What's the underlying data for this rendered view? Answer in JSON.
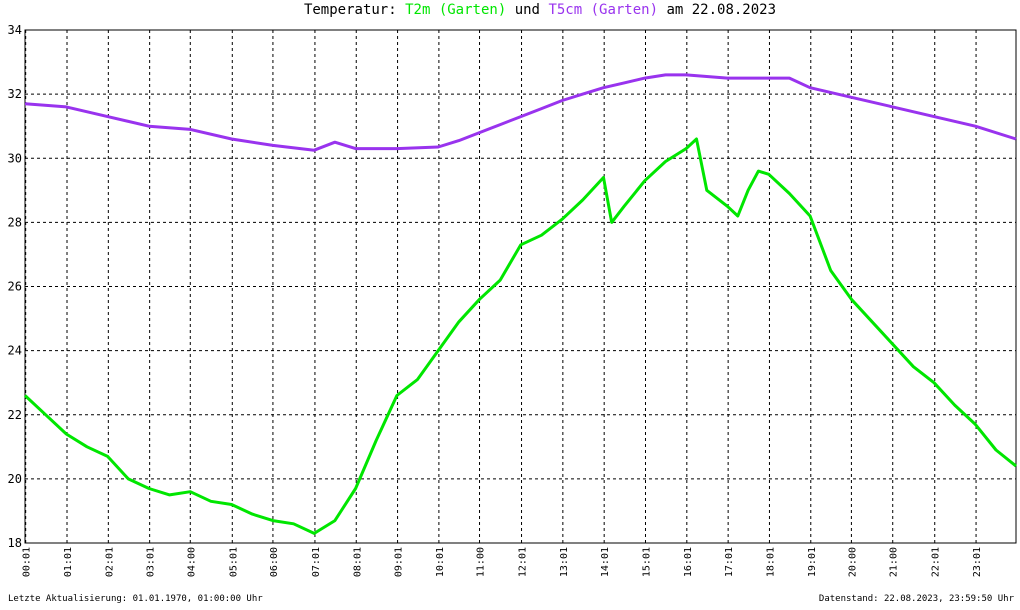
{
  "chart_data": {
    "type": "line",
    "title": "Temperatur:",
    "title_joiner": "und",
    "title_date": "am 22.08.2023",
    "footer_left": "Letzte Aktualisierung: 01.01.1970, 01:00:00 Uhr",
    "footer_right": "Datenstand: 22.08.2023, 23:59:50 Uhr",
    "xlim": [
      0,
      1439
    ],
    "ylim": [
      18,
      34
    ],
    "yticks": [
      18,
      20,
      22,
      24,
      26,
      28,
      30,
      32,
      34
    ],
    "grid": true,
    "xticks": [
      {
        "value": 1,
        "label": "00:01"
      },
      {
        "value": 61,
        "label": "01:01"
      },
      {
        "value": 121,
        "label": "02:01"
      },
      {
        "value": 181,
        "label": "03:01"
      },
      {
        "value": 240,
        "label": "04:00"
      },
      {
        "value": 301,
        "label": "05:01"
      },
      {
        "value": 360,
        "label": "06:00"
      },
      {
        "value": 421,
        "label": "07:01"
      },
      {
        "value": 481,
        "label": "08:01"
      },
      {
        "value": 541,
        "label": "09:01"
      },
      {
        "value": 601,
        "label": "10:01"
      },
      {
        "value": 660,
        "label": "11:00"
      },
      {
        "value": 721,
        "label": "12:01"
      },
      {
        "value": 781,
        "label": "13:01"
      },
      {
        "value": 841,
        "label": "14:01"
      },
      {
        "value": 901,
        "label": "15:01"
      },
      {
        "value": 961,
        "label": "16:01"
      },
      {
        "value": 1021,
        "label": "17:01"
      },
      {
        "value": 1081,
        "label": "18:01"
      },
      {
        "value": 1141,
        "label": "19:01"
      },
      {
        "value": 1200,
        "label": "20:00"
      },
      {
        "value": 1260,
        "label": "21:00"
      },
      {
        "value": 1321,
        "label": "22:01"
      },
      {
        "value": 1381,
        "label": "23:01"
      }
    ],
    "series": [
      {
        "name": "T2m (Garten)",
        "color": "#00e600",
        "x": [
          0,
          30,
          60,
          90,
          120,
          150,
          180,
          210,
          240,
          270,
          300,
          330,
          360,
          390,
          420,
          450,
          480,
          510,
          540,
          570,
          600,
          630,
          660,
          690,
          720,
          750,
          780,
          810,
          840,
          852,
          870,
          900,
          930,
          960,
          975,
          990,
          1020,
          1035,
          1050,
          1065,
          1080,
          1110,
          1140,
          1170,
          1200,
          1230,
          1260,
          1290,
          1320,
          1350,
          1380,
          1410,
          1439
        ],
        "values": [
          22.6,
          22.0,
          21.4,
          21.0,
          20.7,
          20.0,
          19.7,
          19.5,
          19.6,
          19.3,
          19.2,
          18.9,
          18.7,
          18.6,
          18.3,
          18.7,
          19.7,
          21.2,
          22.6,
          23.1,
          24.0,
          24.9,
          25.6,
          26.2,
          27.3,
          27.6,
          28.1,
          28.7,
          29.4,
          28.0,
          28.5,
          29.3,
          29.9,
          30.3,
          30.6,
          29.0,
          28.5,
          28.2,
          29.0,
          29.6,
          29.5,
          28.9,
          28.2,
          26.5,
          25.6,
          24.9,
          24.2,
          23.5,
          23.0,
          22.3,
          21.7,
          20.9,
          20.4
        ]
      },
      {
        "name": "T5cm (Garten)",
        "color": "#9933ee",
        "x": [
          0,
          60,
          120,
          180,
          240,
          300,
          360,
          420,
          450,
          480,
          540,
          600,
          630,
          660,
          690,
          720,
          750,
          780,
          810,
          840,
          870,
          900,
          930,
          960,
          1020,
          1080,
          1110,
          1140,
          1200,
          1260,
          1320,
          1380,
          1439
        ],
        "values": [
          31.7,
          31.6,
          31.3,
          31.0,
          30.9,
          30.6,
          30.4,
          30.25,
          30.5,
          30.3,
          30.3,
          30.35,
          30.55,
          30.8,
          31.05,
          31.3,
          31.55,
          31.8,
          32.0,
          32.2,
          32.35,
          32.5,
          32.6,
          32.6,
          32.5,
          32.5,
          32.5,
          32.2,
          31.9,
          31.6,
          31.3,
          31.0,
          30.6
        ]
      }
    ]
  }
}
